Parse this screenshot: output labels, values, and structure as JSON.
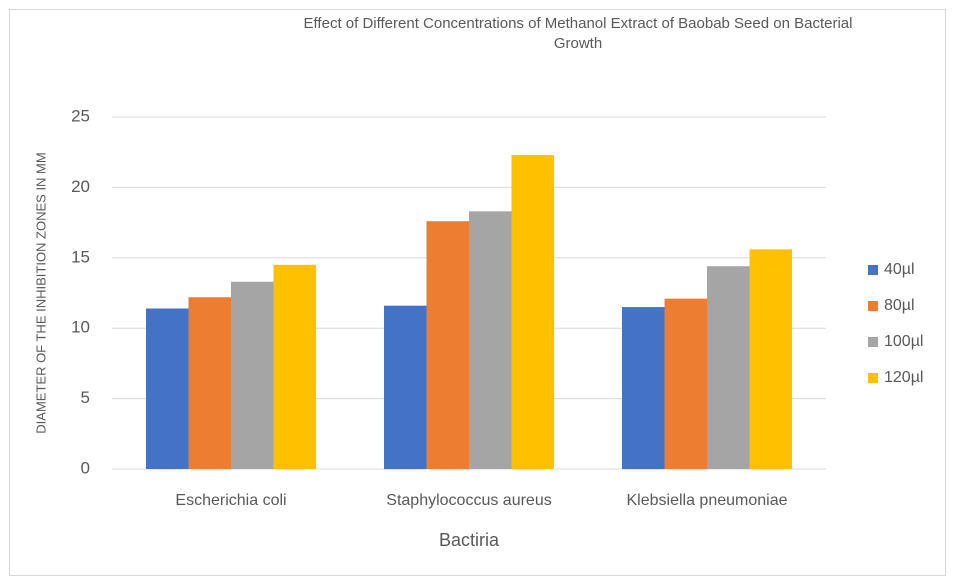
{
  "chart_data": {
    "type": "bar",
    "title": "Effect of Different Concentrations of Methanol Extract of Baobab Seed on Bacterial Growth",
    "x_label": "Bactiria",
    "y_label": "DIAMETER OF THE INHIBITION ZONES IN MM",
    "categories": [
      "Escherichia coli",
      "Staphylococcus aureus",
      "Klebsiella pneumoniae"
    ],
    "series": [
      {
        "name": "40µl",
        "color": "#4472c4",
        "values": [
          11.4,
          11.6,
          11.5
        ]
      },
      {
        "name": "80µl",
        "color": "#ed7d31",
        "values": [
          12.2,
          17.6,
          12.1
        ]
      },
      {
        "name": "100µl",
        "color": "#a5a5a5",
        "values": [
          13.3,
          18.3,
          14.4
        ]
      },
      {
        "name": "120µl",
        "color": "#ffc000",
        "values": [
          14.5,
          22.3,
          15.6
        ]
      }
    ],
    "ylim": [
      0,
      25
    ],
    "yticks": [
      0,
      5,
      10,
      15,
      20,
      25
    ],
    "grid": true,
    "legend": "right"
  }
}
